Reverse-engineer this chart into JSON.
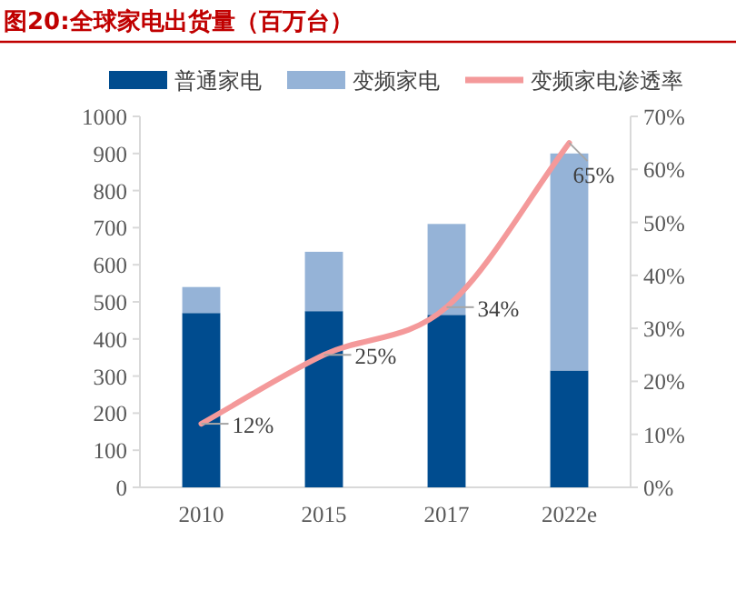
{
  "chart_data": {
    "type": "bar",
    "title": "图20:全球家电出货量（百万台）",
    "categories": [
      "2010",
      "2015",
      "2017",
      "2022e"
    ],
    "stacked": true,
    "series": [
      {
        "name": "普通家电",
        "color": "#004c8f",
        "values": [
          470,
          475,
          465,
          315
        ]
      },
      {
        "name": "变频家电",
        "color": "#95b3d7",
        "values": [
          70,
          160,
          245,
          585
        ]
      },
      {
        "name": "变频家电渗透率",
        "type": "line",
        "axis": "y2",
        "color": "#f4999a",
        "values": [
          12,
          25,
          34,
          65
        ],
        "value_labels": [
          "12%",
          "25%",
          "34%",
          "65%"
        ]
      }
    ],
    "ylim": [
      0,
      1000
    ],
    "yticks": [
      0,
      100,
      200,
      300,
      400,
      500,
      600,
      700,
      800,
      900,
      1000
    ],
    "y2lim": [
      0,
      70
    ],
    "y2ticks": [
      {
        "value": 0,
        "label": "0%"
      },
      {
        "value": 10,
        "label": "10%"
      },
      {
        "value": 20,
        "label": "20%"
      },
      {
        "value": 30,
        "label": "30%"
      },
      {
        "value": 40,
        "label": "40%"
      },
      {
        "value": 50,
        "label": "50%"
      },
      {
        "value": 60,
        "label": "60%"
      },
      {
        "value": 70,
        "label": "70%"
      }
    ],
    "legend": "top",
    "marker": "none",
    "grid": false
  }
}
